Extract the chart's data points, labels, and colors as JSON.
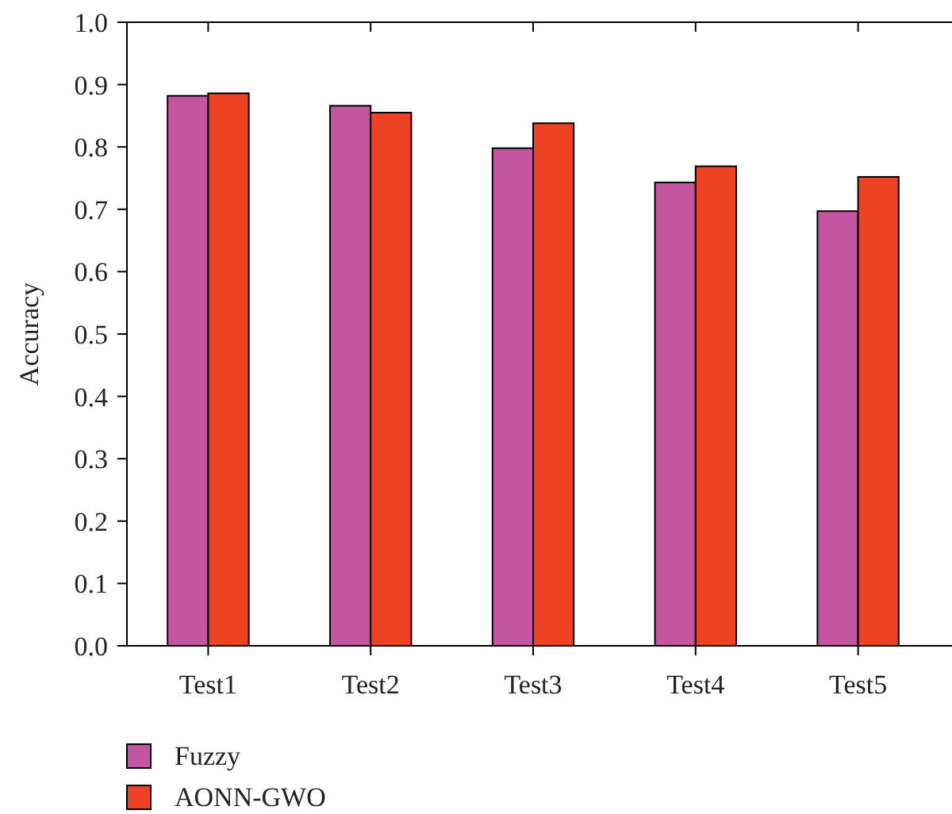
{
  "chart_data": {
    "type": "bar",
    "ylabel": "Accuracy",
    "categories": [
      "Test1",
      "Test2",
      "Test3",
      "Test4",
      "Test5"
    ],
    "series": [
      {
        "name": "Fuzzy",
        "color": "#c455a0",
        "values": [
          0.882,
          0.866,
          0.798,
          0.743,
          0.697
        ]
      },
      {
        "name": "AONN-GWO",
        "color": "#ee4224",
        "values": [
          0.886,
          0.855,
          0.838,
          0.769,
          0.752
        ]
      }
    ],
    "ylim": [
      0,
      1
    ],
    "yticks": [
      {
        "value": 0,
        "label": "0.0"
      },
      0.1,
      0.2,
      0.3,
      0.4,
      0.5,
      0.6,
      0.7,
      0.8,
      0.9,
      {
        "value": 1,
        "label": "1.0"
      }
    ],
    "grid": false,
    "legend": "bottom left"
  }
}
